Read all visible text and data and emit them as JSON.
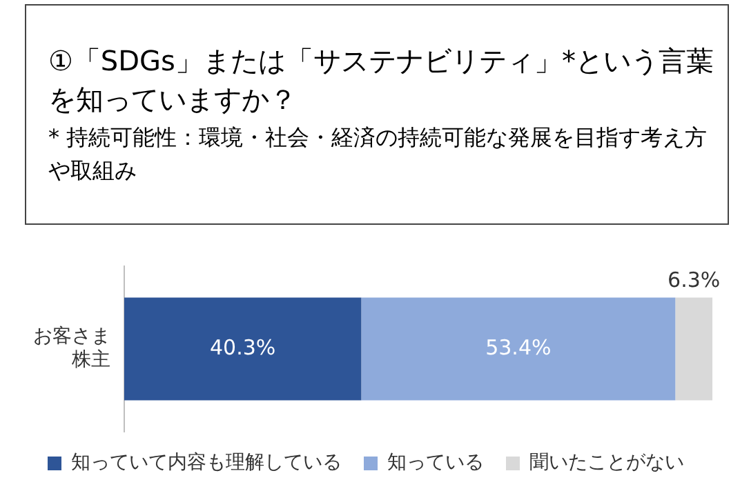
{
  "chart_data": {
    "type": "bar",
    "orientation": "horizontal",
    "stacked": true,
    "title": "①「SDGs」または「サステナビリティ」*という言葉を知っていますか？",
    "subtitle": "* 持続可能性：環境・社会・経済の持続可能な発展を目指す考え方や取組み",
    "categories": [
      "お客さま株主"
    ],
    "xlim": [
      0,
      100
    ],
    "tick_labels": "y",
    "legend": "bottom",
    "series": [
      {
        "name": "知っていて内容も理解している",
        "color": "#2e5597",
        "values": [
          40.3
        ],
        "value_labels": [
          "40.3%"
        ]
      },
      {
        "name": "知っている",
        "color": "#8eaadb",
        "values": [
          53.4
        ],
        "value_labels": [
          "53.4%"
        ]
      },
      {
        "name": "聞いたことがない",
        "color": "#d9d9d9",
        "values": [
          6.3
        ],
        "value_labels": [
          "6.3%"
        ]
      }
    ]
  }
}
